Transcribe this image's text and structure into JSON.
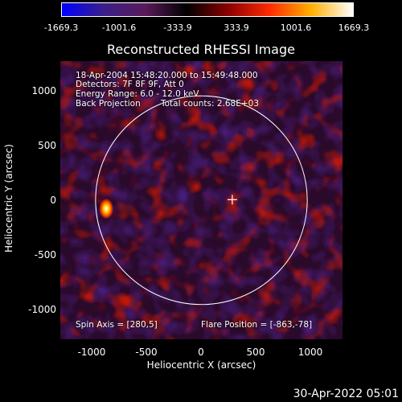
{
  "title": "Reconstructed RHESSI Image",
  "colorbar": {
    "ticks": [
      "-1669.3",
      "-1001.6",
      "-333.9",
      "333.9",
      "1001.6",
      "1669.3"
    ],
    "colors": [
      "#0000ff",
      "#3a1f8a",
      "#5a1a5a",
      "#000000",
      "#8a0000",
      "#ff2a00",
      "#ffb000",
      "#ffffff"
    ]
  },
  "axes": {
    "xlabel": "Heliocentric X (arcsec)",
    "ylabel": "Heliocentric Y (arcsec)",
    "xticks": [
      "-1000",
      "-500",
      "0",
      "500",
      "1000"
    ],
    "yticks": [
      "1000",
      "500",
      "0",
      "-500",
      "-1000"
    ],
    "xlim": [
      -1280,
      1280
    ],
    "ylim": [
      -1280,
      1280
    ]
  },
  "annotations": {
    "line1": "18-Apr-2004 15:48:20.000 to 15:49:48.000",
    "line2": "Detectors: 7F 8F 9F, Att 0",
    "line3": "Energy Range: 6.0 - 12.0 keV",
    "line4_left": "Back Projection",
    "line4_right": "Total counts: 2.68E+03",
    "spin_axis": "Spin Axis = [280,5]",
    "flare_position": "Flare Position = [-863,-78]"
  },
  "solar_disk_radius_arcsec": 960,
  "spin_axis_xy": [
    280,
    5
  ],
  "flare_xy": [
    -863,
    -78
  ],
  "timestamp": "30-Apr-2022 05:01"
}
